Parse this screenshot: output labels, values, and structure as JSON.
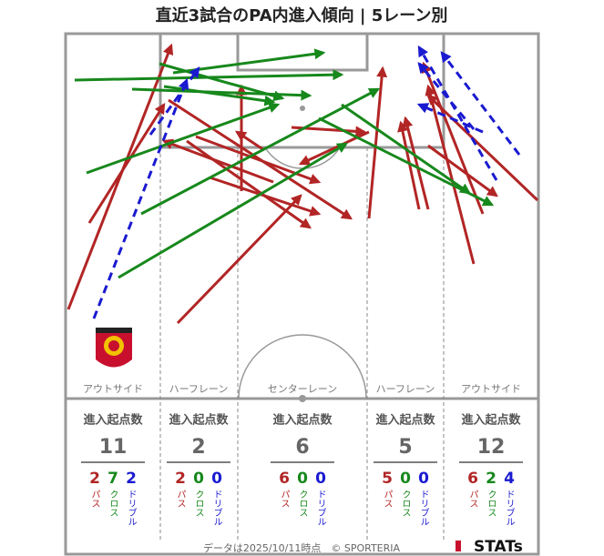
{
  "title": "直近3試合のPA内進入傾向 | 5レーン別",
  "header_label": "進入起点数",
  "kind_labels": [
    "パス",
    "クロス",
    "ドリブル"
  ],
  "lanes": [
    {
      "label": "アウトサイド",
      "total": "11",
      "breakdown": [
        "2",
        "7",
        "2"
      ]
    },
    {
      "label": "ハーフレーン",
      "total": "2",
      "breakdown": [
        "2",
        "0",
        "0"
      ]
    },
    {
      "label": "センターレーン",
      "total": "6",
      "breakdown": [
        "6",
        "0",
        "0"
      ]
    },
    {
      "label": "ハーフレーン",
      "total": "5",
      "breakdown": [
        "5",
        "0",
        "0"
      ]
    },
    {
      "label": "アウトサイド",
      "total": "12",
      "breakdown": [
        "6",
        "2",
        "4"
      ]
    }
  ],
  "footer": "データは2025/10/11時点　© SPORTERIA",
  "brand": "STATs"
}
